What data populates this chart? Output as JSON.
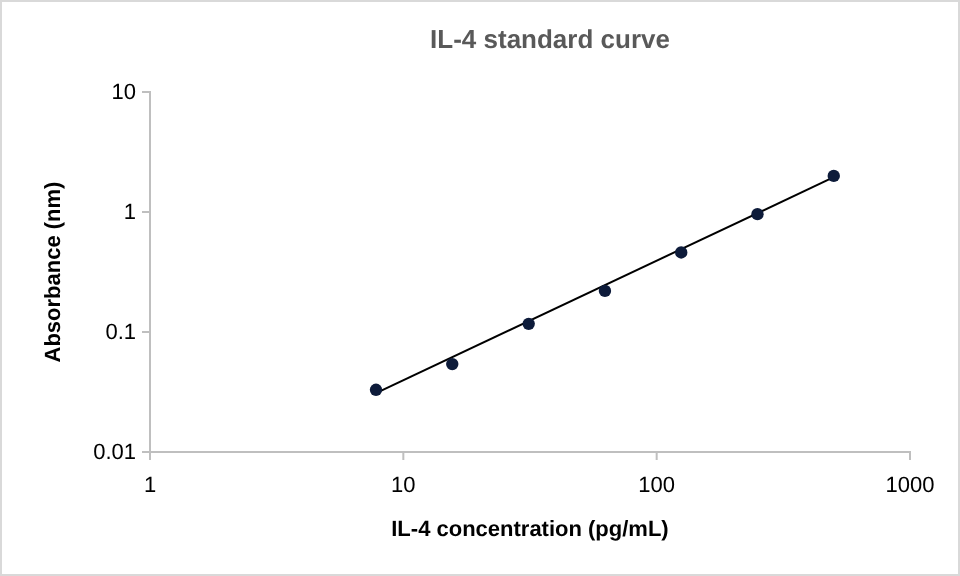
{
  "chart_data": {
    "type": "scatter",
    "title": "IL-4 standard curve",
    "xlabel": "IL-4 concentration  (pg/mL)",
    "ylabel": "Absorbance  (nm)",
    "log": "xy",
    "xlim": [
      1,
      1000
    ],
    "xticks": [
      1,
      10,
      100,
      1000
    ],
    "ylim": [
      0.01,
      10
    ],
    "yticks": [
      0.01,
      0.1,
      1,
      10
    ],
    "x": [
      7.8,
      15.6,
      31.25,
      62.5,
      125,
      250,
      500
    ],
    "grid": false,
    "series": [
      {
        "marker": "circle",
        "color": "#0d1b3a",
        "values": [
          0.033,
          0.054,
          0.117,
          0.22,
          0.46,
          0.96,
          2.0
        ]
      },
      {
        "type": "line",
        "color": "#000000",
        "x": [
          7.8,
          500
        ],
        "values": [
          0.031,
          1.95
        ]
      }
    ]
  }
}
